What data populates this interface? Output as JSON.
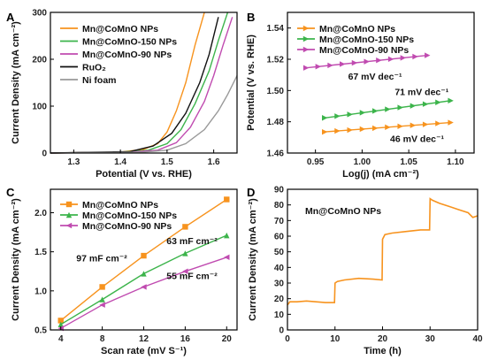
{
  "chart_data": [
    {
      "panel": "A",
      "type": "line",
      "xlabel": "Potential (V vs. RHE)",
      "ylabel": "Current Density (mA cm⁻²)",
      "xlim": [
        1.25,
        1.65
      ],
      "ylim": [
        0,
        300
      ],
      "xticks": [
        "1.3",
        "1.4",
        "1.5",
        "1.6"
      ],
      "xtick_values": [
        1.3,
        1.4,
        1.5,
        1.6
      ],
      "yticks": [
        "0",
        "100",
        "200",
        "300"
      ],
      "ytick_values": [
        0,
        100,
        200,
        300
      ],
      "legend_position": "top-left",
      "series": [
        {
          "name": "Mn@CoMnO NPs",
          "color": "#f7931e",
          "x": [
            1.25,
            1.4,
            1.45,
            1.48,
            1.5,
            1.52,
            1.54,
            1.56,
            1.58
          ],
          "y": [
            0,
            2,
            8,
            20,
            45,
            90,
            150,
            230,
            300
          ]
        },
        {
          "name": "Mn@CoMnO-150 NPs",
          "color": "#3cb44b",
          "x": [
            1.25,
            1.4,
            1.46,
            1.5,
            1.53,
            1.56,
            1.59,
            1.61,
            1.63
          ],
          "y": [
            0,
            2,
            6,
            20,
            50,
            105,
            175,
            240,
            300
          ]
        },
        {
          "name": "Mn@CoMnO-90 NPs",
          "color": "#c04bb0",
          "x": [
            1.25,
            1.42,
            1.48,
            1.52,
            1.55,
            1.58,
            1.6,
            1.62,
            1.64
          ],
          "y": [
            0,
            2,
            6,
            22,
            55,
            110,
            165,
            230,
            290
          ]
        },
        {
          "name": "RuO₂",
          "color": "#111111",
          "x": [
            1.25,
            1.42,
            1.47,
            1.51,
            1.54,
            1.57,
            1.59,
            1.61
          ],
          "y": [
            0,
            3,
            15,
            42,
            85,
            150,
            210,
            290
          ]
        },
        {
          "name": "Ni foam",
          "color": "#999999",
          "x": [
            1.25,
            1.45,
            1.5,
            1.54,
            1.58,
            1.61,
            1.63,
            1.65
          ],
          "y": [
            0,
            2,
            6,
            20,
            50,
            90,
            125,
            165
          ]
        }
      ]
    },
    {
      "panel": "B",
      "type": "line",
      "xlabel": "Log(j) (mA cm⁻²)",
      "ylabel": "Potential (V vs. RHE)",
      "xlim": [
        0.92,
        1.12
      ],
      "ylim": [
        1.46,
        1.55
      ],
      "xticks": [
        "0.95",
        "1.00",
        "1.05",
        "1.10"
      ],
      "xtick_values": [
        0.95,
        1.0,
        1.05,
        1.1
      ],
      "yticks": [
        "1.46",
        "1.48",
        "1.50",
        "1.52",
        "1.54"
      ],
      "ytick_values": [
        1.46,
        1.48,
        1.5,
        1.52,
        1.54
      ],
      "legend_position": "top-left",
      "series": [
        {
          "name": "Mn@CoMnO NPs",
          "color": "#f7931e",
          "marker": "triangle-right",
          "x": [
            0.96,
            1.095
          ],
          "y": [
            1.4735,
            1.4795
          ],
          "label": "46 mV dec⁻¹",
          "label_at": [
            1.03,
            1.467
          ]
        },
        {
          "name": "Mn@CoMnO-150 NPs",
          "color": "#3cb44b",
          "marker": "triangle-right",
          "x": [
            0.96,
            1.095
          ],
          "y": [
            1.4825,
            1.4935
          ],
          "label": "71 mV dec⁻¹",
          "label_at": [
            1.035,
            1.497
          ]
        },
        {
          "name": "Mn@CoMnO-90 NPs",
          "color": "#c04bb0",
          "marker": "triangle-right",
          "x": [
            0.94,
            1.07
          ],
          "y": [
            1.5145,
            1.5225
          ],
          "label": "67 mV dec⁻¹",
          "label_at": [
            0.985,
            1.507
          ]
        }
      ]
    },
    {
      "panel": "C",
      "type": "line",
      "xlabel": "Scan rate (mV S⁻¹)",
      "ylabel": "Current Density (mA cm⁻²)",
      "xlim": [
        3,
        21
      ],
      "ylim": [
        0.5,
        2.3
      ],
      "xticks": [
        "4",
        "8",
        "12",
        "16",
        "20"
      ],
      "xtick_values": [
        4,
        8,
        12,
        16,
        20
      ],
      "yticks": [
        "0.5",
        "1.0",
        "1.5",
        "2.0"
      ],
      "ytick_values": [
        0.5,
        1.0,
        1.5,
        2.0
      ],
      "legend_position": "top-left",
      "series": [
        {
          "name": "Mn@CoMnO NPs",
          "color": "#f7931e",
          "marker": "square",
          "x": [
            4,
            8,
            12,
            16,
            20
          ],
          "y": [
            0.62,
            1.05,
            1.45,
            1.82,
            2.17
          ],
          "label": "97 mF cm⁻²",
          "label_at": [
            5.5,
            1.38
          ]
        },
        {
          "name": "Mn@CoMnO-150 NPs",
          "color": "#3cb44b",
          "marker": "triangle-up",
          "x": [
            4,
            8,
            12,
            16,
            20
          ],
          "y": [
            0.57,
            0.89,
            1.22,
            1.48,
            1.71
          ],
          "label": "63 mF cm⁻²",
          "label_at": [
            14.2,
            1.6
          ]
        },
        {
          "name": "Mn@CoMnO-90 NPs",
          "color": "#c04bb0",
          "marker": "triangle-left",
          "x": [
            4,
            8,
            12,
            16,
            20
          ],
          "y": [
            0.52,
            0.82,
            1.05,
            1.25,
            1.43
          ],
          "label": "55 mF cm⁻²",
          "label_at": [
            14.2,
            1.15
          ]
        }
      ]
    },
    {
      "panel": "D",
      "type": "line",
      "xlabel": "Time (h)",
      "ylabel": "Current Density (mA cm⁻²)",
      "xlim": [
        0,
        40
      ],
      "ylim": [
        0,
        90
      ],
      "xticks": [
        "0",
        "10",
        "20",
        "30",
        "40"
      ],
      "xtick_values": [
        0,
        10,
        20,
        30,
        40
      ],
      "yticks": [
        "0",
        "10",
        "20",
        "30",
        "40",
        "50",
        "60",
        "70",
        "80",
        "90"
      ],
      "ytick_values": [
        0,
        10,
        20,
        30,
        40,
        50,
        60,
        70,
        80,
        90
      ],
      "legend_position": "top-left",
      "series": [
        {
          "name": "Mn@CoMnO NPs",
          "color": "#f7931e",
          "x": [
            0,
            0.5,
            2,
            4,
            6,
            8,
            9.9,
            10,
            10.5,
            12,
            15,
            18,
            19.9,
            20,
            20.5,
            22,
            25,
            28,
            29.9,
            30,
            30.5,
            32,
            34,
            36,
            38,
            39,
            40
          ],
          "y": [
            16,
            18,
            18,
            18.5,
            18,
            17.5,
            17.5,
            30,
            31,
            32,
            33,
            32.5,
            32,
            58,
            61,
            62,
            63,
            64,
            64,
            84,
            83,
            81,
            79,
            77,
            75,
            72,
            73
          ]
        }
      ]
    }
  ]
}
